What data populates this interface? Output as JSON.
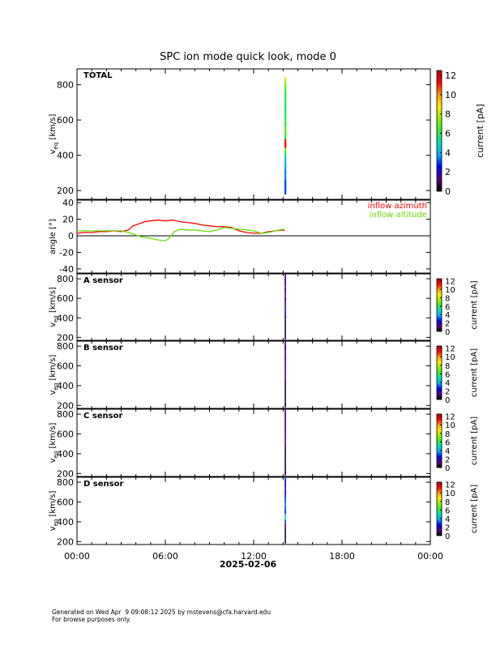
{
  "page": {
    "title": "SPC ion mode quick look, mode 0",
    "date_label": "2025-02-06",
    "footer_line1": "Generated on Wed Apr  9 09:08:12 2025 by mstevens@cfa.harvard.edu",
    "footer_line2": "For browse purposes only."
  },
  "colors": {
    "azimuth": "#ff0000",
    "altitude": "#66dd00",
    "colorbar_stops": [
      "#000000",
      "#5a0080",
      "#0000ff",
      "#00aaff",
      "#00ddbb",
      "#33ee33",
      "#99ee00",
      "#ffee00",
      "#ff9900",
      "#ff0000",
      "#bb0000"
    ]
  },
  "chart_data": [
    {
      "type": "heatmap",
      "panel_label": "TOTAL",
      "ylabel": "v_eq [km/s]",
      "ylabel_main": "v",
      "ylabel_sub": "eq",
      "ylabel_unit": " [km/s]",
      "ylim": [
        150,
        890
      ],
      "yticks": [
        200,
        400,
        600,
        800
      ],
      "xlim_hours": [
        0,
        24
      ],
      "colorbar_label": "current [pA]",
      "colorbar_range": [
        0,
        12.5
      ],
      "colorbar_ticks": [
        0,
        2,
        4,
        6,
        8,
        10,
        12
      ],
      "data_time_hours": 14.15,
      "column": [
        {
          "v": 820,
          "current": 9
        },
        {
          "v": 800,
          "current": 7.5
        },
        {
          "v": 780,
          "current": 7
        },
        {
          "v": 760,
          "current": 6.5
        },
        {
          "v": 740,
          "current": 6
        },
        {
          "v": 720,
          "current": 6
        },
        {
          "v": 700,
          "current": 6
        },
        {
          "v": 680,
          "current": 5.5
        },
        {
          "v": 660,
          "current": 5.5
        },
        {
          "v": 640,
          "current": 6
        },
        {
          "v": 620,
          "current": 5.5
        },
        {
          "v": 600,
          "current": 6
        },
        {
          "v": 580,
          "current": 6.5
        },
        {
          "v": 560,
          "current": 6
        },
        {
          "v": 540,
          "current": 7
        },
        {
          "v": 520,
          "current": 6.5
        },
        {
          "v": 500,
          "current": 6
        },
        {
          "v": 470,
          "current": 11
        },
        {
          "v": 450,
          "current": 11.5
        },
        {
          "v": 420,
          "current": 7
        },
        {
          "v": 400,
          "current": 6
        },
        {
          "v": 380,
          "current": 5
        },
        {
          "v": 360,
          "current": 4.5
        },
        {
          "v": 340,
          "current": 4
        },
        {
          "v": 320,
          "current": 4
        },
        {
          "v": 300,
          "current": 3.5
        },
        {
          "v": 280,
          "current": 3.5
        },
        {
          "v": 260,
          "current": 3.5
        },
        {
          "v": 240,
          "current": 3
        },
        {
          "v": 220,
          "current": 3
        },
        {
          "v": 200,
          "current": 3
        }
      ]
    },
    {
      "type": "line",
      "ylabel": "angle [°]",
      "ylim": [
        -45,
        43
      ],
      "yticks": [
        -40,
        -20,
        0,
        20,
        40
      ],
      "xlim_hours": [
        0,
        24
      ],
      "zero_line": true,
      "legend_position": "top-right",
      "series": [
        {
          "name": "inflow azimuth",
          "x": [
            0,
            0.5,
            1,
            1.5,
            2,
            2.5,
            3,
            3.5,
            3.8,
            4,
            4.3,
            4.6,
            5,
            5.5,
            6,
            6.5,
            7,
            7.5,
            8,
            8.5,
            9,
            9.5,
            10,
            10.5,
            11,
            11.5,
            12,
            12.5,
            13,
            13.5,
            14,
            14.1
          ],
          "y": [
            3,
            4,
            4,
            5,
            5,
            6,
            5,
            7,
            12,
            13,
            15,
            17,
            18,
            19,
            18,
            19,
            17,
            16,
            15,
            13,
            12,
            11,
            11,
            10,
            6,
            4,
            3,
            3,
            5,
            6,
            7,
            6
          ]
        },
        {
          "name": "inflow altitude",
          "x": [
            0,
            0.5,
            1,
            1.5,
            2,
            2.5,
            3,
            3.5,
            4,
            4.3,
            4.6,
            5,
            5.5,
            6,
            6.3,
            6.6,
            7,
            7.5,
            8,
            8.5,
            9,
            9.5,
            10,
            10.5,
            11,
            11.5,
            12,
            12.5,
            13,
            13.5,
            14,
            14.1
          ],
          "y": [
            6,
            6,
            6,
            6,
            6,
            6,
            6,
            4,
            1,
            -1,
            -2,
            -3,
            -5,
            -6,
            -2,
            5,
            8,
            7,
            7,
            6,
            5,
            7,
            10,
            9,
            8,
            7,
            6,
            3,
            4,
            6,
            8,
            7
          ]
        }
      ]
    },
    {
      "type": "heatmap",
      "panel_label": "A sensor",
      "ylabel": "v_eq [km/s]",
      "ylabel_main": "v",
      "ylabel_sub": "eq",
      "ylabel_unit": " [km/s]",
      "ylim": [
        170,
        850
      ],
      "yticks": [
        200,
        400,
        600,
        800
      ],
      "colorbar_label": "current [pA]",
      "colorbar_range": [
        0,
        12.5
      ],
      "colorbar_ticks": [
        0,
        2,
        4,
        6,
        8,
        10,
        12
      ],
      "data_time_hours": 14.15,
      "column": [
        {
          "v": 830,
          "current": 1
        },
        {
          "v": 800,
          "current": 1
        },
        {
          "v": 780,
          "current": 1.5
        },
        {
          "v": 760,
          "current": 1
        },
        {
          "v": 740,
          "current": 1
        },
        {
          "v": 700,
          "current": 1
        },
        {
          "v": 680,
          "current": 1
        },
        {
          "v": 640,
          "current": 1
        },
        {
          "v": 600,
          "current": 1.5
        },
        {
          "v": 580,
          "current": 1
        },
        {
          "v": 540,
          "current": 1
        },
        {
          "v": 500,
          "current": 1.5
        },
        {
          "v": 460,
          "current": 2.5
        },
        {
          "v": 420,
          "current": 1
        },
        {
          "v": 400,
          "current": 1
        },
        {
          "v": 360,
          "current": 0.5
        },
        {
          "v": 320,
          "current": 0.5
        },
        {
          "v": 280,
          "current": 0.5
        },
        {
          "v": 240,
          "current": 0.5
        },
        {
          "v": 200,
          "current": 0.5
        }
      ]
    },
    {
      "type": "heatmap",
      "panel_label": "B sensor",
      "ylabel": "v_eq [km/s]",
      "ylabel_main": "v",
      "ylabel_sub": "eq",
      "ylabel_unit": " [km/s]",
      "ylim": [
        170,
        850
      ],
      "yticks": [
        200,
        400,
        600,
        800
      ],
      "colorbar_label": "current [pA]",
      "colorbar_range": [
        0,
        12.5
      ],
      "colorbar_ticks": [
        0,
        2,
        4,
        6,
        8,
        10,
        12
      ],
      "data_time_hours": 14.15,
      "column": [
        {
          "v": 830,
          "current": 1.5
        },
        {
          "v": 800,
          "current": 1
        },
        {
          "v": 780,
          "current": 1
        },
        {
          "v": 760,
          "current": 1
        },
        {
          "v": 720,
          "current": 1
        },
        {
          "v": 690,
          "current": 1
        },
        {
          "v": 660,
          "current": 1
        },
        {
          "v": 620,
          "current": 1
        },
        {
          "v": 580,
          "current": 1
        },
        {
          "v": 540,
          "current": 1
        },
        {
          "v": 500,
          "current": 1
        },
        {
          "v": 460,
          "current": 1
        },
        {
          "v": 420,
          "current": 0.5
        },
        {
          "v": 380,
          "current": 0.5
        },
        {
          "v": 340,
          "current": 0.5
        },
        {
          "v": 300,
          "current": 0.5
        },
        {
          "v": 260,
          "current": 0.5
        },
        {
          "v": 220,
          "current": 0.5
        },
        {
          "v": 200,
          "current": 0.5
        }
      ]
    },
    {
      "type": "heatmap",
      "panel_label": "C sensor",
      "ylabel": "v_eq [km/s]",
      "ylabel_main": "v",
      "ylabel_sub": "eq",
      "ylabel_unit": " [km/s]",
      "ylim": [
        170,
        850
      ],
      "yticks": [
        200,
        400,
        600,
        800
      ],
      "colorbar_label": "current [pA]",
      "colorbar_range": [
        0,
        12.5
      ],
      "colorbar_ticks": [
        0,
        2,
        4,
        6,
        8,
        10,
        12
      ],
      "data_time_hours": 14.15,
      "column": [
        {
          "v": 830,
          "current": 1
        },
        {
          "v": 800,
          "current": 1
        },
        {
          "v": 770,
          "current": 1
        },
        {
          "v": 740,
          "current": 1
        },
        {
          "v": 710,
          "current": 1
        },
        {
          "v": 680,
          "current": 1
        },
        {
          "v": 650,
          "current": 1
        },
        {
          "v": 620,
          "current": 1
        },
        {
          "v": 580,
          "current": 1
        },
        {
          "v": 540,
          "current": 1
        },
        {
          "v": 500,
          "current": 1
        },
        {
          "v": 460,
          "current": 0.5
        },
        {
          "v": 420,
          "current": 0.5
        },
        {
          "v": 380,
          "current": 0.5
        },
        {
          "v": 340,
          "current": 0.5
        },
        {
          "v": 300,
          "current": 0.5
        },
        {
          "v": 260,
          "current": 0.5
        },
        {
          "v": 220,
          "current": 0.5
        },
        {
          "v": 200,
          "current": 0.5
        }
      ]
    },
    {
      "type": "heatmap",
      "panel_label": "D sensor",
      "ylabel": "v_eq [km/s]",
      "ylabel_main": "v",
      "ylabel_sub": "eq",
      "ylabel_unit": " [km/s]",
      "ylim": [
        170,
        850
      ],
      "yticks": [
        200,
        400,
        600,
        800
      ],
      "xlabel": "2025-02-06",
      "xlim_hours": [
        0,
        24
      ],
      "xticks_hours": [
        0,
        6,
        12,
        18,
        24
      ],
      "xtick_labels": [
        "00:00",
        "06:00",
        "12:00",
        "18:00",
        "00:00"
      ],
      "colorbar_label": "current [pA]",
      "colorbar_range": [
        0,
        12.5
      ],
      "colorbar_ticks": [
        0,
        2,
        4,
        6,
        8,
        10,
        12
      ],
      "data_time_hours": 14.15,
      "column": [
        {
          "v": 830,
          "current": 3
        },
        {
          "v": 810,
          "current": 2.5
        },
        {
          "v": 780,
          "current": 2
        },
        {
          "v": 760,
          "current": 2
        },
        {
          "v": 720,
          "current": 2
        },
        {
          "v": 690,
          "current": 2.5
        },
        {
          "v": 660,
          "current": 2
        },
        {
          "v": 630,
          "current": 3
        },
        {
          "v": 600,
          "current": 3
        },
        {
          "v": 570,
          "current": 3.5
        },
        {
          "v": 540,
          "current": 3
        },
        {
          "v": 500,
          "current": 2.5
        },
        {
          "v": 460,
          "current": 4
        },
        {
          "v": 430,
          "current": 5.5
        },
        {
          "v": 400,
          "current": 3
        },
        {
          "v": 360,
          "current": 1
        },
        {
          "v": 320,
          "current": 0.5
        },
        {
          "v": 280,
          "current": 0.5
        },
        {
          "v": 240,
          "current": 0.5
        },
        {
          "v": 200,
          "current": 0.5
        }
      ]
    }
  ]
}
